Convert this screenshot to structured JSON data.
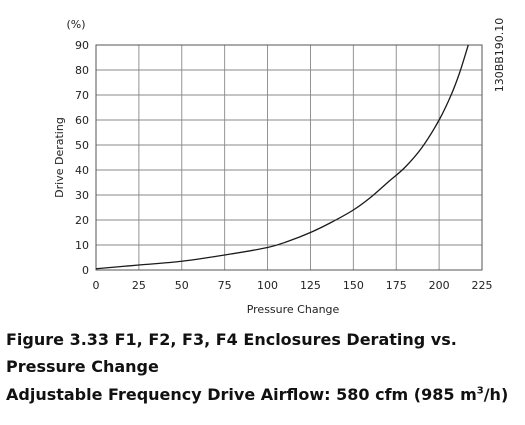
{
  "chart_data": {
    "type": "line",
    "title": "",
    "xlabel": "Pressure Change",
    "ylabel": "Drive Derating",
    "yunit_label": "(%)",
    "xlim": [
      0,
      225
    ],
    "ylim": [
      0,
      90
    ],
    "xticks": [
      0,
      25,
      50,
      75,
      100,
      125,
      150,
      175,
      200,
      225
    ],
    "yticks": [
      0,
      10,
      20,
      30,
      40,
      50,
      60,
      70,
      80,
      90
    ],
    "grid": true,
    "side_label": "130BB190.10",
    "series": [
      {
        "x": [
          0,
          25,
          50,
          75,
          100,
          112,
          125,
          137,
          150,
          160,
          170,
          180,
          190,
          200,
          207,
          212,
          217
        ],
        "y": [
          0.5,
          2,
          3.5,
          6,
          9,
          11.5,
          15,
          19,
          24,
          29,
          35,
          41,
          49,
          60,
          70,
          79,
          90
        ]
      }
    ],
    "colors": {
      "line": "#1a1a1a",
      "grid": "#888888",
      "frame": "#555555"
    }
  },
  "caption": {
    "line1": "Figure 3.33 F1, F2, F3, F4 Enclosures Derating vs. Pressure Change",
    "line2_prefix": "Adjustable Frequency Drive Airflow: 580 cfm (985 m",
    "line2_sup": "3",
    "line2_suffix": "/h)"
  }
}
